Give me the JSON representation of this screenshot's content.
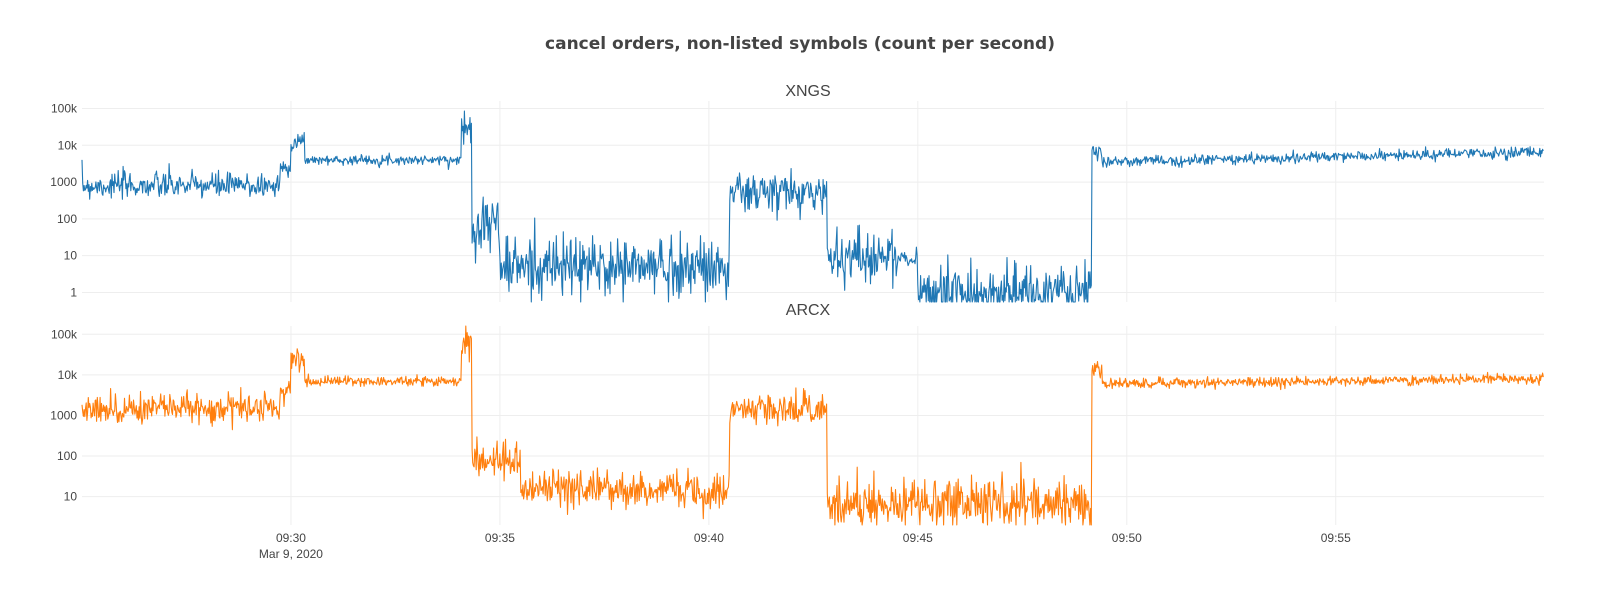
{
  "chart_data": {
    "type": "line",
    "title": "cancel orders, non-listed symbols (count per second)",
    "x_range": [
      "2020-03-09 09:25:00",
      "2020-03-09 09:59:59"
    ],
    "x_ticks": [
      {
        "time": "09:30",
        "label": "09:30",
        "date_label": "Mar 9, 2020"
      },
      {
        "time": "09:35",
        "label": "09:35",
        "date_label": ""
      },
      {
        "time": "09:40",
        "label": "09:40",
        "date_label": ""
      },
      {
        "time": "09:45",
        "label": "09:45",
        "date_label": ""
      },
      {
        "time": "09:50",
        "label": "09:50",
        "date_label": ""
      },
      {
        "time": "09:55",
        "label": "09:55",
        "date_label": ""
      }
    ],
    "grid": true,
    "y_scale": "log",
    "panels": [
      {
        "name": "XNGS",
        "color": "#1f77b4",
        "y_range": [
          0.55,
          160000
        ],
        "y_ticks": [
          {
            "value": 1,
            "label": "1"
          },
          {
            "value": 10,
            "label": "10"
          },
          {
            "value": 100,
            "label": "100"
          },
          {
            "value": 1000,
            "label": "1000"
          },
          {
            "value": 10000,
            "label": "10k"
          },
          {
            "value": 100000,
            "label": "100k"
          }
        ],
        "segments": [
          {
            "start": "09:25:00",
            "end": "09:29:45",
            "level": 800,
            "noise": 0.3
          },
          {
            "start": "09:29:45",
            "end": "09:30:00",
            "level": 2500,
            "noise": 0.2
          },
          {
            "start": "09:30:00",
            "end": "09:30:20",
            "level": 12000,
            "noise": 0.25
          },
          {
            "start": "09:30:20",
            "end": "09:34:05",
            "level": 4000,
            "noise": 0.1
          },
          {
            "start": "09:34:05",
            "end": "09:34:20",
            "level": 30000,
            "noise": 0.4
          },
          {
            "start": "09:34:20",
            "end": "09:35:00",
            "level": 80,
            "noise": 0.7
          },
          {
            "start": "09:35:00",
            "end": "09:40:30",
            "level": 5,
            "noise": 0.7
          },
          {
            "start": "09:40:30",
            "end": "09:42:50",
            "level": 500,
            "noise": 0.5
          },
          {
            "start": "09:42:50",
            "end": "09:44:30",
            "level": 10,
            "noise": 0.6
          },
          {
            "start": "09:44:30",
            "end": "09:45:00",
            "level": 8,
            "noise": 0.2
          },
          {
            "start": "09:45:00",
            "end": "09:49:10",
            "level": 1,
            "noise": 0.6
          },
          {
            "start": "09:49:10",
            "end": "09:49:25",
            "level": 6000,
            "noise": 0.2
          },
          {
            "start": "09:49:25",
            "end": "09:59:59",
            "level": 3500,
            "noise": 0.12,
            "trend_end": 6500
          }
        ]
      },
      {
        "name": "ARCX",
        "color": "#ff7f0e",
        "y_range": [
          2,
          160000
        ],
        "y_ticks": [
          {
            "value": 10,
            "label": "10"
          },
          {
            "value": 100,
            "label": "100"
          },
          {
            "value": 1000,
            "label": "1000"
          },
          {
            "value": 10000,
            "label": "10k"
          },
          {
            "value": 100000,
            "label": "100k"
          }
        ],
        "segments": [
          {
            "start": "09:25:00",
            "end": "09:29:45",
            "level": 1500,
            "noise": 0.3
          },
          {
            "start": "09:29:45",
            "end": "09:30:00",
            "level": 4000,
            "noise": 0.2
          },
          {
            "start": "09:30:00",
            "end": "09:30:20",
            "level": 25000,
            "noise": 0.25
          },
          {
            "start": "09:30:20",
            "end": "09:34:05",
            "level": 7000,
            "noise": 0.1
          },
          {
            "start": "09:34:05",
            "end": "09:34:20",
            "level": 60000,
            "noise": 0.4
          },
          {
            "start": "09:34:20",
            "end": "09:35:30",
            "level": 80,
            "noise": 0.4
          },
          {
            "start": "09:35:30",
            "end": "09:40:30",
            "level": 15,
            "noise": 0.4
          },
          {
            "start": "09:40:30",
            "end": "09:42:50",
            "level": 1500,
            "noise": 0.3
          },
          {
            "start": "09:42:50",
            "end": "09:49:10",
            "level": 7,
            "noise": 0.5
          },
          {
            "start": "09:49:10",
            "end": "09:49:25",
            "level": 15000,
            "noise": 0.2
          },
          {
            "start": "09:49:25",
            "end": "09:59:59",
            "level": 6000,
            "noise": 0.1,
            "trend_end": 8000
          }
        ]
      }
    ]
  }
}
